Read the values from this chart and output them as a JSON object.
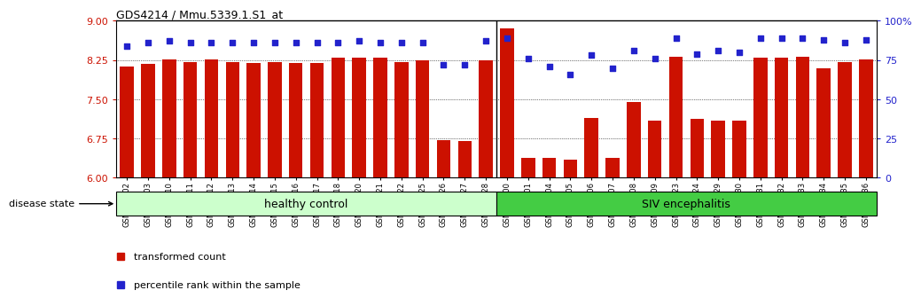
{
  "title": "GDS4214 / Mmu.5339.1.S1_at",
  "samples": [
    "GSM347802",
    "GSM347803",
    "GSM347810",
    "GSM347811",
    "GSM347812",
    "GSM347813",
    "GSM347814",
    "GSM347815",
    "GSM347816",
    "GSM347817",
    "GSM347818",
    "GSM347820",
    "GSM347821",
    "GSM347822",
    "GSM347825",
    "GSM347826",
    "GSM347827",
    "GSM347828",
    "GSM347800",
    "GSM347801",
    "GSM347804",
    "GSM347805",
    "GSM347806",
    "GSM347807",
    "GSM347808",
    "GSM347809",
    "GSM347823",
    "GSM347824",
    "GSM347829",
    "GSM347830",
    "GSM347831",
    "GSM347832",
    "GSM347833",
    "GSM347834",
    "GSM347835",
    "GSM347836"
  ],
  "bar_values": [
    8.13,
    8.18,
    8.26,
    8.22,
    8.26,
    8.22,
    8.2,
    8.22,
    8.2,
    8.19,
    8.3,
    8.3,
    8.29,
    8.22,
    8.25,
    6.72,
    6.7,
    8.25,
    8.85,
    6.38,
    6.38,
    6.35,
    7.15,
    6.38,
    7.45,
    7.1,
    8.32,
    7.12,
    7.1,
    7.1,
    8.3,
    8.3,
    8.32,
    8.1,
    8.22,
    8.27
  ],
  "percentile_values": [
    84,
    86,
    87,
    86,
    86,
    86,
    86,
    86,
    86,
    86,
    86,
    87,
    86,
    86,
    86,
    72,
    72,
    87,
    89,
    76,
    71,
    66,
    78,
    70,
    81,
    76,
    89,
    79,
    81,
    80,
    89,
    89,
    89,
    88,
    86,
    88
  ],
  "healthy_count": 18,
  "bar_color": "#cc1100",
  "percentile_color": "#2222cc",
  "ylim_min": 6.0,
  "ylim_max": 9.0,
  "yticks": [
    6.0,
    6.75,
    7.5,
    8.25,
    9.0
  ],
  "right_yticks": [
    0,
    25,
    50,
    75,
    100
  ],
  "healthy_label": "healthy control",
  "disease_label": "SIV encephalitis",
  "legend1": "transformed count",
  "legend2": "percentile rank within the sample",
  "healthy_color": "#ccffcc",
  "disease_color": "#44cc44",
  "left_tick_color": "#cc1100",
  "right_tick_color": "#2222cc"
}
